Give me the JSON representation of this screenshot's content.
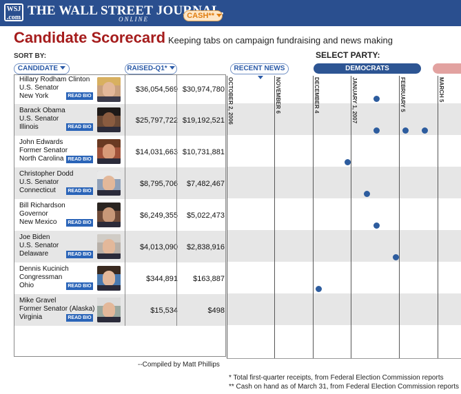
{
  "header": {
    "logo_badge": "WSJ .com",
    "logo_text": "THE WALL STREET JOURNAL.",
    "logo_online": "ONLINE"
  },
  "page": {
    "title": "Candidate Scorecard",
    "subtitle": "Keeping tabs on campaign fundraising and news making",
    "sort_by_label": "SORT BY:",
    "select_party_label": "SELECT PARTY:"
  },
  "sort_buttons": {
    "candidate": "CANDIDATE",
    "raised": "RAISED-Q1*",
    "cash": "CASH**",
    "recent_news": "RECENT NEWS"
  },
  "party_buttons": {
    "democrats": "DEMOCRATS"
  },
  "read_bio_label": "READ BIO",
  "candidates": [
    {
      "name": "Hillary Rodham Clinton",
      "title": "U.S. Senator",
      "state": "New York",
      "raised": "$36,054,569",
      "cash": "$30,974,780"
    },
    {
      "name": "Barack  Obama",
      "title": "U.S. Senator",
      "state": "Illinois",
      "raised": "$25,797,722",
      "cash": "$19,192,521"
    },
    {
      "name": "John Edwards",
      "title": "Former Senator",
      "state": "North Carolina",
      "raised": "$14,031,663",
      "cash": "$10,731,881"
    },
    {
      "name": "Christopher  Dodd",
      "title": "U.S. Senator",
      "state": "Connecticut",
      "raised": "$8,795,706",
      "cash": "$7,482,467"
    },
    {
      "name": "Bill Richardson",
      "title": "Governor",
      "state": "New Mexico",
      "raised": "$6,249,355",
      "cash": "$5,022,473"
    },
    {
      "name": "Joe Biden",
      "title": "U.S. Senator",
      "state": "Delaware",
      "raised": "$4,013,090",
      "cash": "$2,838,916"
    },
    {
      "name": "Dennis Kucinich",
      "title": "Congressman",
      "state": "Ohio",
      "raised": "$344,891",
      "cash": "$163,887"
    },
    {
      "name": "Mike Gravel",
      "title": "Former Senator (Alaska)",
      "state": "Virginia",
      "raised": "$15,534",
      "cash": "$498"
    }
  ],
  "timeline": {
    "months": [
      "OCTOBER 2, 2006",
      "NOVEMBER 6",
      "DECEMBER 4",
      "JANUARY 1, 2007",
      "FEBRUARY 5",
      "MARCH 5"
    ]
  },
  "footer": {
    "compiled_by": "--Compiled by Matt Phillips",
    "note_raised": "* Total first-quarter receipts, from Federal Election Commission reports",
    "note_cash": "** Cash on hand as of March 31, from Federal Election Commission reports"
  },
  "colors": {
    "header_blue": "#2a4f8f",
    "title_red": "#a51c1c",
    "dot_blue": "#2d5c9e",
    "democrat_blue": "#2d5593",
    "republican_pink": "#e2a2a0"
  }
}
